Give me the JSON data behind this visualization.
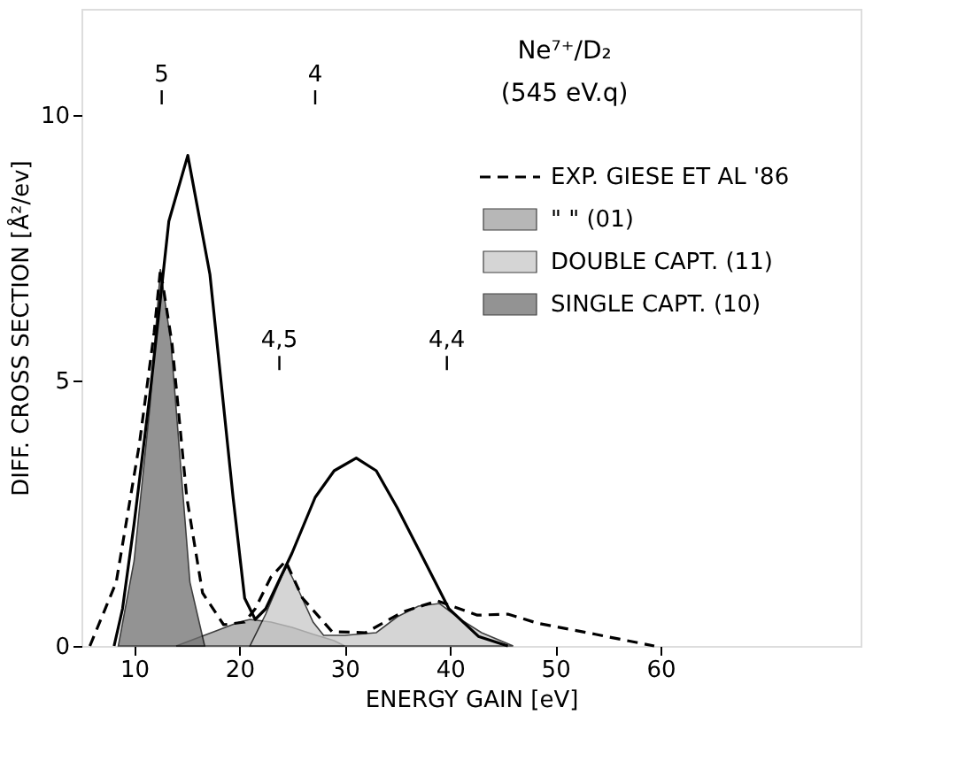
{
  "chart_data": {
    "type": "line",
    "title": "Ne⁷⁺/D₂",
    "subtitle": "(545 eV.q)",
    "xlabel": "ENERGY GAIN  [eV]",
    "ylabel": "DIFF. CROSS SECTION  [Å²/ev]",
    "xlim": [
      5,
      79
    ],
    "ylim": [
      0,
      12
    ],
    "xticks": [
      10,
      20,
      30,
      40,
      50,
      60
    ],
    "yticks": [
      0,
      5,
      10
    ],
    "grid": false,
    "legend": "top right",
    "series": [
      {
        "type": "area",
        "name": "\" \" (01)",
        "color": "#a0a0a0",
        "x": [
          14,
          16,
          18,
          20,
          21,
          23,
          25,
          27,
          29,
          30
        ],
        "values": [
          0,
          0.15,
          0.3,
          0.45,
          0.5,
          0.45,
          0.35,
          0.22,
          0.1,
          0
        ]
      },
      {
        "type": "area",
        "name": "DOUBLE CAPT. (11)",
        "color": "#c8c8c8",
        "x": [
          21,
          22.5,
          24,
          24.5,
          25.5,
          27,
          28,
          30,
          33,
          35,
          37,
          39,
          41,
          43,
          46
        ],
        "values": [
          0,
          0.6,
          1.3,
          1.5,
          1.1,
          0.45,
          0.2,
          0.2,
          0.25,
          0.55,
          0.75,
          0.8,
          0.5,
          0.25,
          0
        ]
      },
      {
        "type": "area",
        "name": "SINGLE CAPT. (10)",
        "color": "#707070",
        "x": [
          8.5,
          10,
          11.5,
          12.5,
          13.5,
          14.5,
          15.3,
          16.7
        ],
        "values": [
          0,
          1.6,
          4.5,
          7.1,
          5.7,
          3.2,
          1.2,
          0
        ]
      },
      {
        "color": "#000000",
        "line_style": "solid",
        "x": [
          8.1,
          8.9,
          10,
          11.6,
          13.3,
          15.1,
          17.2,
          18.3,
          19.4,
          20.5,
          21.5,
          22.5,
          25,
          27.2,
          29,
          31.1,
          33,
          35,
          37.2,
          39.9,
          42.7,
          45.5
        ],
        "values": [
          0,
          0.7,
          2.3,
          4.9,
          8.0,
          9.24,
          7.0,
          4.9,
          2.8,
          0.9,
          0.5,
          0.7,
          1.75,
          2.8,
          3.3,
          3.54,
          3.3,
          2.6,
          1.75,
          0.7,
          0.18,
          0
        ]
      },
      {
        "name": "EXP. GIESE ET AL '86",
        "color": "#000000",
        "line_style": "dashed",
        "x": [
          5.8,
          8.3,
          10.5,
          11.9,
          12.5,
          13.6,
          15,
          16.5,
          18.5,
          20.5,
          21.5,
          23,
          24.4,
          26,
          28.8,
          32,
          35.5,
          38.8,
          42.6,
          45.5,
          48.3,
          53.8,
          59.4
        ],
        "values": [
          0,
          1.2,
          3.8,
          5.9,
          7.1,
          5.7,
          2.8,
          1.0,
          0.4,
          0.45,
          0.7,
          1.3,
          1.6,
          0.9,
          0.27,
          0.25,
          0.64,
          0.85,
          0.58,
          0.6,
          0.43,
          0.22,
          0
        ]
      }
    ],
    "annotations": [
      "5",
      "4",
      "4,5",
      "4,4"
    ]
  }
}
